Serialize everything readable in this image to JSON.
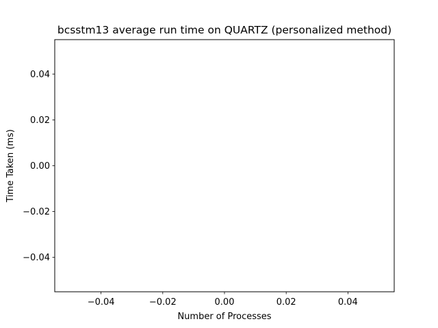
{
  "chart_data": {
    "type": "line",
    "title": "bcsstm13 average run time on QUARTZ (personalized method)",
    "xlabel": "Number of Processes",
    "ylabel": "Time Taken (ms)",
    "xlim": [
      -0.055,
      0.055
    ],
    "ylim": [
      -0.055,
      0.055
    ],
    "x_ticks": [
      -0.04,
      -0.02,
      0.0,
      0.02,
      0.04
    ],
    "x_tick_labels": [
      "−0.04",
      "−0.02",
      "0.00",
      "0.02",
      "0.04"
    ],
    "y_ticks": [
      -0.04,
      -0.02,
      0.0,
      0.02,
      0.04
    ],
    "y_tick_labels": [
      "−0.04",
      "−0.02",
      "0.00",
      "0.02",
      "0.04"
    ],
    "series": [],
    "grid": false,
    "legend": "none"
  }
}
